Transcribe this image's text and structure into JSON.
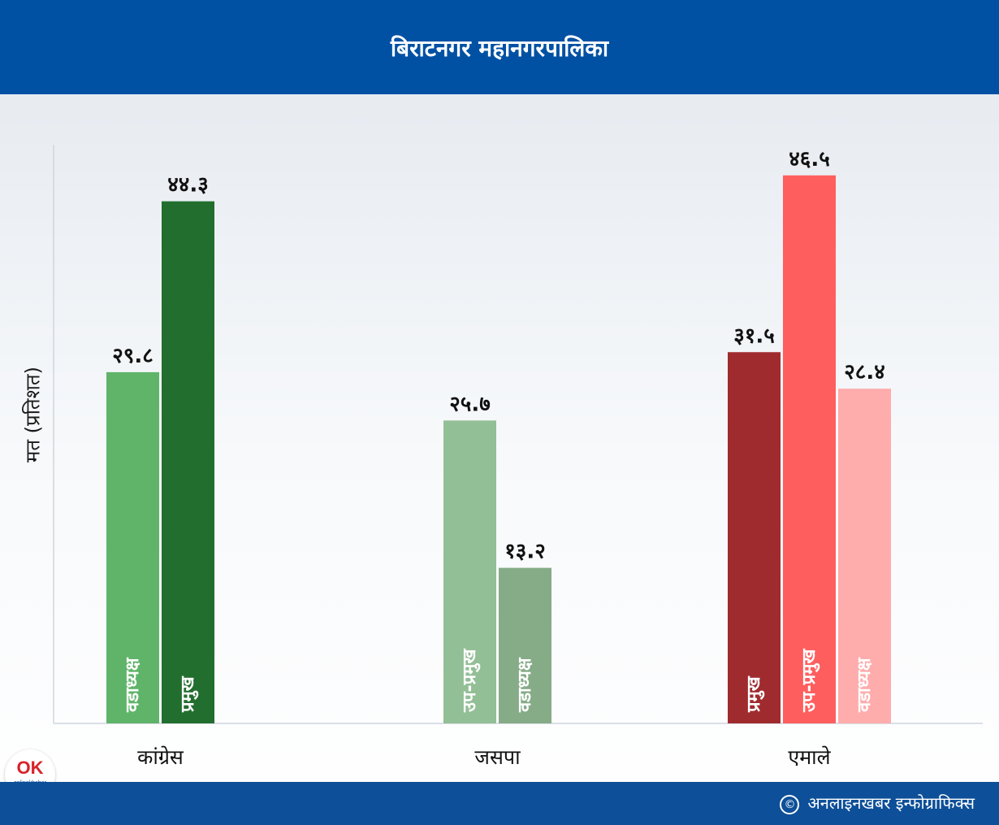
{
  "header": {
    "title": "बिराटनगर महानगरपालिका"
  },
  "footer": {
    "credit": "अनलाइनखबर इन्फोग्राफिक्स",
    "copyright_symbol": "©"
  },
  "logo": {
    "mark": "OK",
    "text": "onlinekhabar"
  },
  "chart_data": {
    "type": "bar",
    "title": "बिराटनगर महानगरपालिका",
    "ylabel": "मत (प्रतिशत)",
    "xlabel": "",
    "ylim": [
      0,
      50
    ],
    "grid": false,
    "groups": [
      {
        "name": "कांग्रेस",
        "bars": [
          {
            "label": "वडाध्यक्ष",
            "value": 29.8,
            "value_text": "२९.८",
            "color": "#5fb46a"
          },
          {
            "label": "प्रमुख",
            "value": 44.3,
            "value_text": "४४.३",
            "color": "#226e2e"
          }
        ]
      },
      {
        "name": "जसपा",
        "bars": [
          {
            "label": "उप-प्रमुख",
            "value": 25.7,
            "value_text": "२५.७",
            "color": "#92bf95"
          },
          {
            "label": "वडाध्यक्ष",
            "value": 13.2,
            "value_text": "१३.२",
            "color": "#85ab87"
          }
        ]
      },
      {
        "name": "एमाले",
        "bars": [
          {
            "label": "प्रमुख",
            "value": 31.5,
            "value_text": "३१.५",
            "color": "#a02b2f"
          },
          {
            "label": "उप-प्रमुख",
            "value": 46.5,
            "value_text": "४६.५",
            "color": "#ff5e5e"
          },
          {
            "label": "वडाध्यक्ष",
            "value": 28.4,
            "value_text": "२८.४",
            "color": "#ffacac"
          }
        ]
      }
    ]
  }
}
